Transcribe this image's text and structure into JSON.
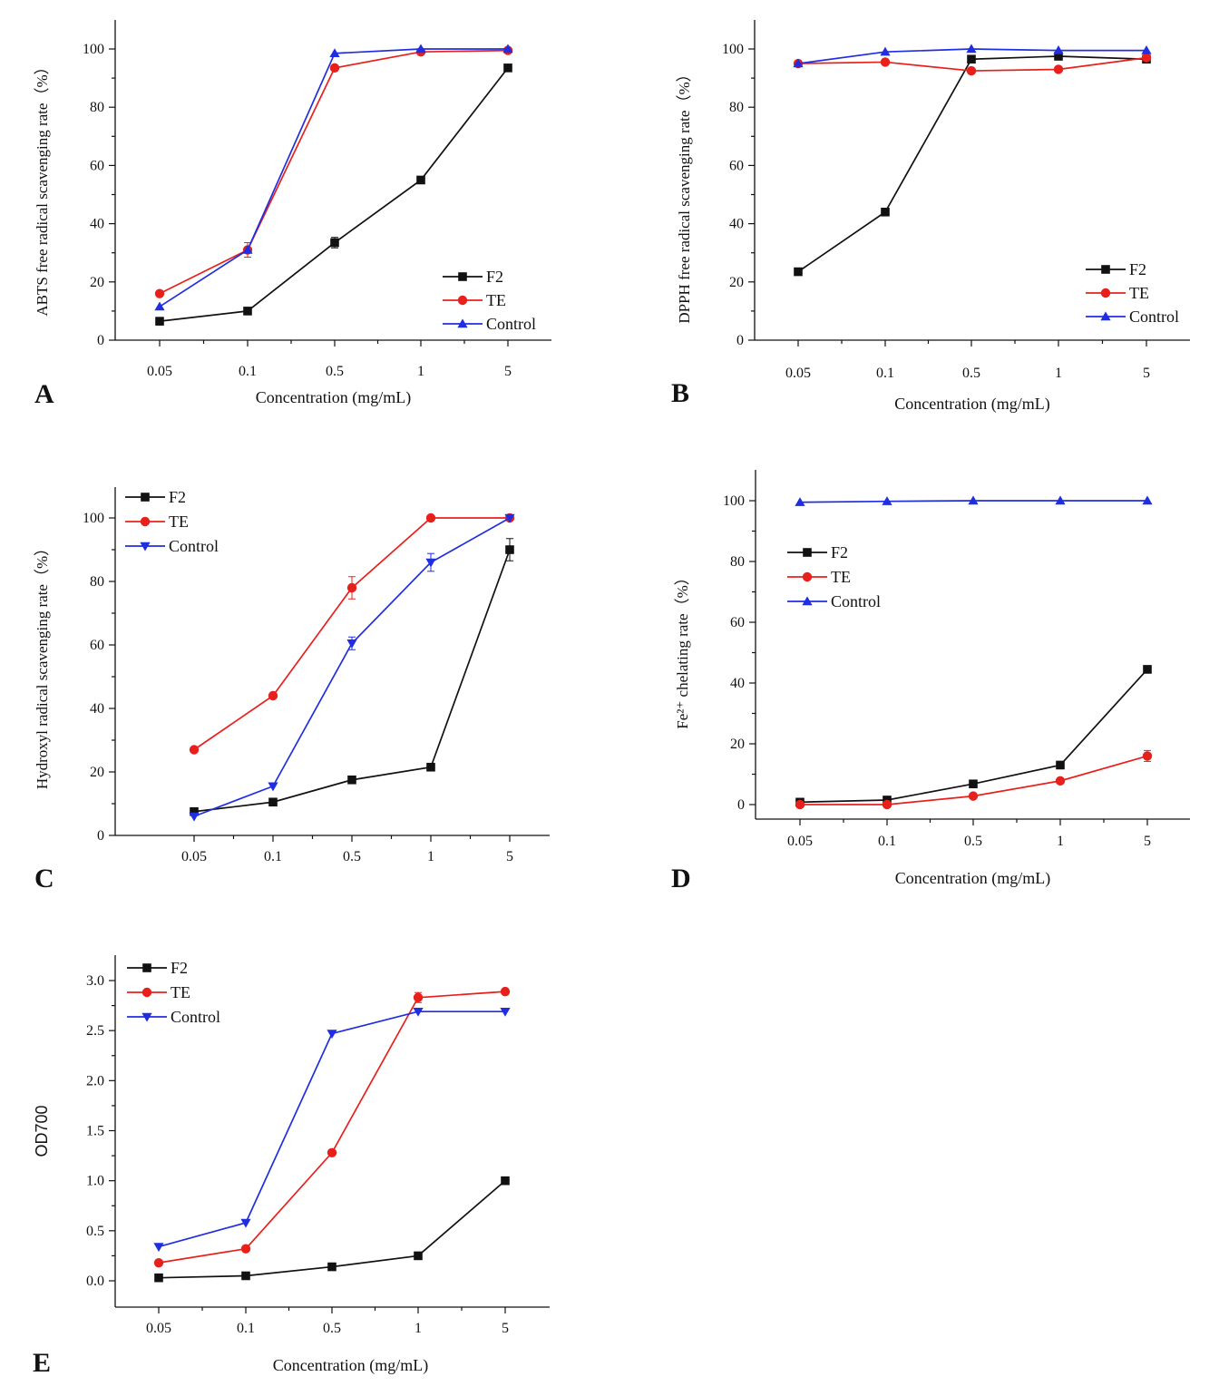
{
  "chart_data": [
    {
      "panel": "A",
      "type": "line",
      "categories": [
        "0.05",
        "0.1",
        "0.5",
        "1",
        "5"
      ],
      "xlabel": "Concentration (mg/mL)",
      "ylabel": "ABTS free radical scavenging rate（%）",
      "ylim": [
        0,
        110
      ],
      "yticks": [
        0,
        20,
        40,
        60,
        80,
        100
      ],
      "ytick_labels": [
        "0",
        "20",
        "40",
        "60",
        "80",
        "100"
      ],
      "legend": "bottom-right",
      "series": [
        {
          "name": "F2",
          "values": [
            6.5,
            10,
            33.5,
            55,
            93.5
          ],
          "errors": [
            0,
            0,
            1.8,
            0,
            0
          ],
          "color": "#111111",
          "marker": "square"
        },
        {
          "name": "TE",
          "values": [
            16,
            31,
            93.5,
            99,
            99.5
          ],
          "errors": [
            0,
            2.5,
            0,
            0,
            0
          ],
          "color": "#e8201c",
          "marker": "circle"
        },
        {
          "name": "Control",
          "values": [
            11.5,
            31,
            98.5,
            100,
            100
          ],
          "errors": [
            0,
            0,
            0,
            0,
            0
          ],
          "color": "#1f2ee0",
          "marker": "triangle-up"
        }
      ]
    },
    {
      "panel": "B",
      "type": "line",
      "categories": [
        "0.05",
        "0.1",
        "0.5",
        "1",
        "5"
      ],
      "xlabel": "Concentration (mg/mL)",
      "ylabel": "DPPH free radical scavenging rate（%）",
      "ylim": [
        0,
        110
      ],
      "yticks": [
        0,
        20,
        40,
        60,
        80,
        100
      ],
      "ytick_labels": [
        "0",
        "20",
        "40",
        "60",
        "80",
        "100"
      ],
      "legend": "bottom-right",
      "series": [
        {
          "name": "F2",
          "values": [
            23.5,
            44,
            96.5,
            97.5,
            96.5
          ],
          "errors": [
            0,
            0,
            0,
            0,
            0
          ],
          "color": "#111111",
          "marker": "square"
        },
        {
          "name": "TE",
          "values": [
            95,
            95.5,
            92.5,
            93,
            97
          ],
          "errors": [
            0,
            0,
            0,
            0,
            0
          ],
          "color": "#e8201c",
          "marker": "circle"
        },
        {
          "name": "Control",
          "values": [
            95,
            99,
            100,
            99.5,
            99.5
          ],
          "errors": [
            0,
            0,
            0,
            0,
            0
          ],
          "color": "#1f2ee0",
          "marker": "triangle-up"
        }
      ]
    },
    {
      "panel": "C",
      "type": "line",
      "categories": [
        "0.05",
        "0.1",
        "0.5",
        "1",
        "5"
      ],
      "xlabel": "",
      "ylabel": "Hydroxyl radical scavenging rate（%）",
      "ylim": [
        0,
        110
      ],
      "yticks": [
        0,
        20,
        40,
        60,
        80,
        100
      ],
      "ytick_labels": [
        "0",
        "20",
        "40",
        "60",
        "80",
        "100"
      ],
      "legend": "top-left",
      "series": [
        {
          "name": "F2",
          "values": [
            7.5,
            10.5,
            17.5,
            21.5,
            90
          ],
          "errors": [
            0,
            0,
            0,
            0,
            3.5
          ],
          "color": "#111111",
          "marker": "square"
        },
        {
          "name": "TE",
          "values": [
            27,
            44,
            78,
            100,
            100
          ],
          "errors": [
            0,
            0,
            3.5,
            0,
            0
          ],
          "color": "#e8201c",
          "marker": "circle"
        },
        {
          "name": "Control",
          "values": [
            6,
            15.5,
            60.5,
            86,
            100
          ],
          "errors": [
            0,
            0,
            2,
            2.8,
            0
          ],
          "color": "#1f2ee0",
          "marker": "triangle-down"
        }
      ]
    },
    {
      "panel": "D",
      "type": "line",
      "categories": [
        "0.05",
        "0.1",
        "0.5",
        "1",
        "5"
      ],
      "xlabel": "Concentration (mg/mL)",
      "ylabel": "Fe²⁺ chelating rate（%）",
      "ylim": [
        -5,
        110
      ],
      "yticks": [
        0,
        20,
        40,
        60,
        80,
        100
      ],
      "ytick_labels": [
        "0",
        "20",
        "40",
        "60",
        "80",
        "100"
      ],
      "legend": "middle-left",
      "series": [
        {
          "name": "F2",
          "values": [
            0.8,
            1.5,
            6.8,
            13,
            44.5
          ],
          "errors": [
            0,
            0,
            0,
            0,
            0
          ],
          "color": "#111111",
          "marker": "square"
        },
        {
          "name": "TE",
          "values": [
            0,
            0,
            2.8,
            7.8,
            16
          ],
          "errors": [
            0,
            0,
            0,
            0,
            1.8
          ],
          "color": "#e8201c",
          "marker": "circle"
        },
        {
          "name": "Control",
          "values": [
            99.5,
            99.8,
            100,
            100,
            100
          ],
          "errors": [
            0,
            0,
            0,
            0,
            0
          ],
          "color": "#1f2ee0",
          "marker": "triangle-up"
        }
      ]
    },
    {
      "panel": "E",
      "type": "line",
      "categories": [
        "0.05",
        "0.1",
        "0.5",
        "1",
        "5"
      ],
      "xlabel": "Concentration (mg/mL)",
      "ylabel": "OD700",
      "ylim": [
        -0.25,
        3.25
      ],
      "yticks": [
        0,
        0.5,
        1,
        1.5,
        2,
        2.5,
        3
      ],
      "ytick_labels": [
        "0.0",
        "0.5",
        "1.0",
        "1.5",
        "2.0",
        "2.5",
        "3.0"
      ],
      "legend": "top-left",
      "series": [
        {
          "name": "F2",
          "values": [
            0.03,
            0.05,
            0.14,
            0.25,
            1.0
          ],
          "errors": [
            0,
            0,
            0,
            0,
            0
          ],
          "color": "#111111",
          "marker": "square"
        },
        {
          "name": "TE",
          "values": [
            0.18,
            0.32,
            1.28,
            2.83,
            2.89
          ],
          "errors": [
            0,
            0,
            0,
            0.05,
            0
          ],
          "color": "#e8201c",
          "marker": "circle"
        },
        {
          "name": "Control",
          "values": [
            0.34,
            0.58,
            2.47,
            2.69,
            2.69
          ],
          "errors": [
            0,
            0,
            0,
            0,
            0
          ],
          "color": "#1f2ee0",
          "marker": "triangle-down"
        }
      ]
    }
  ]
}
